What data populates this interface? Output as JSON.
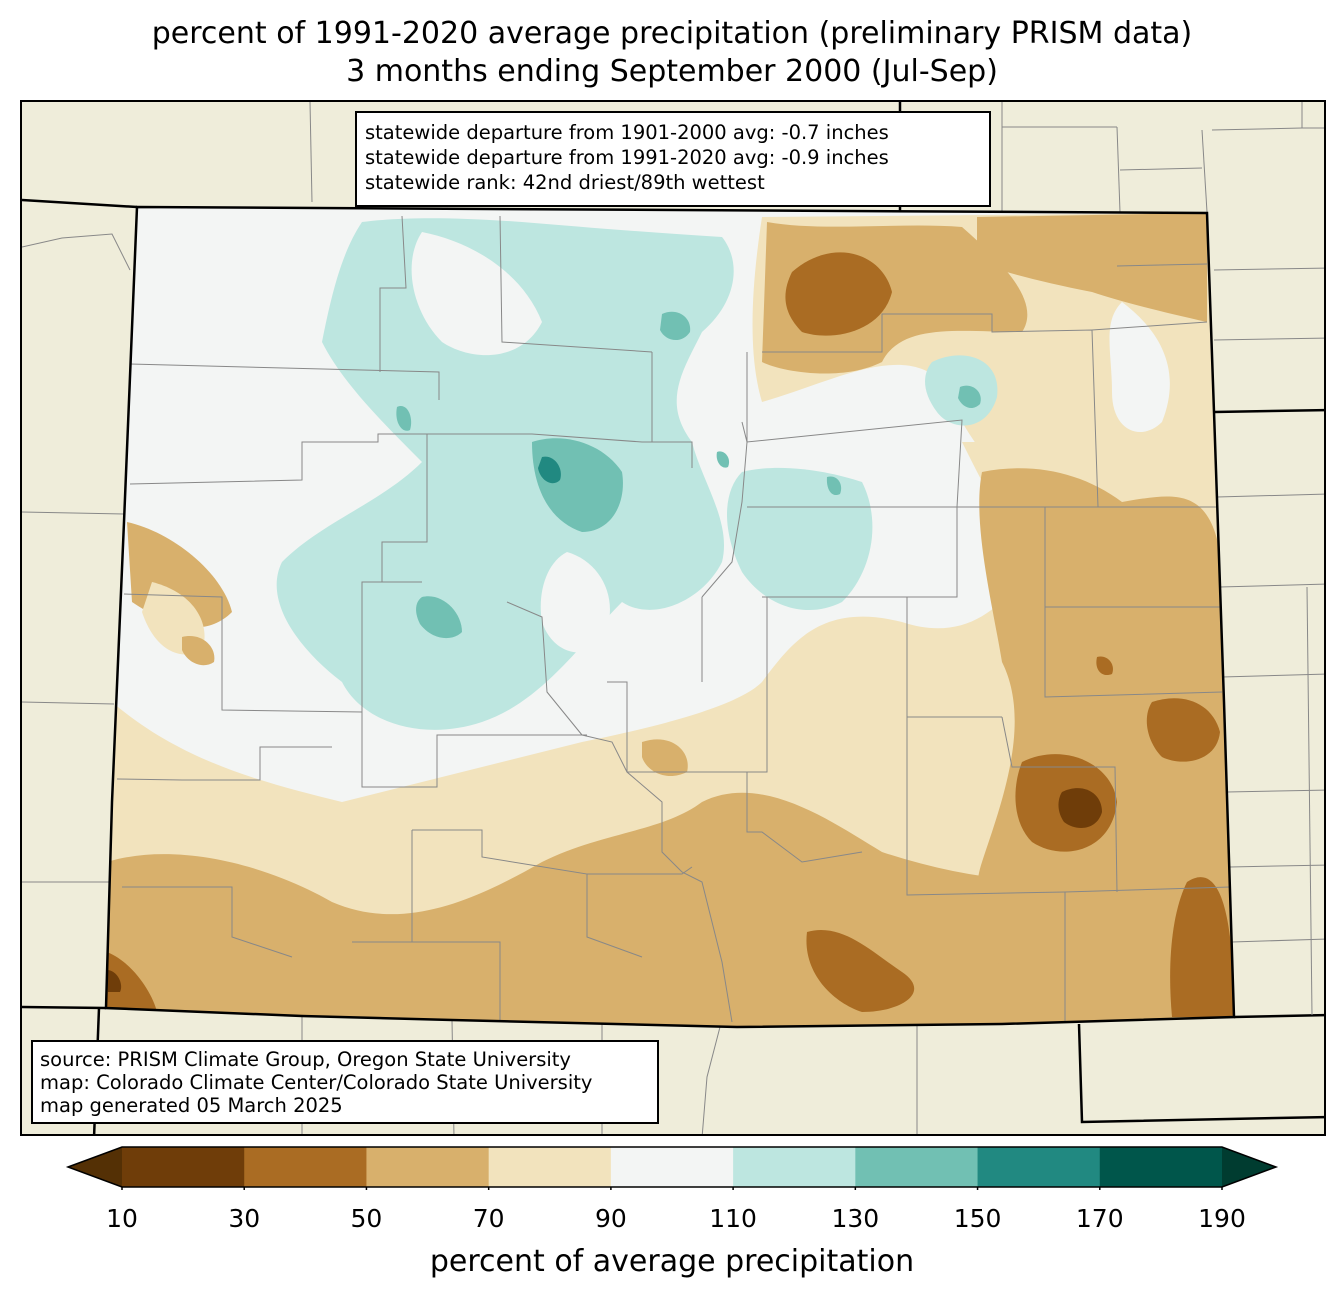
{
  "title": {
    "line1": "percent of 1991-2020 average precipitation (preliminary PRISM data)",
    "line2": "3 months ending September 2000 (Jul-Sep)"
  },
  "stats_box": {
    "line1": "statewide departure from 1901-2000 avg: -0.7 inches",
    "line2": "statewide departure from 1991-2020 avg: -0.9 inches",
    "line3": "statewide rank: 42nd driest/89th wettest"
  },
  "source_box": {
    "line1": "source: PRISM Climate Group, Oregon State University",
    "line2": "map: Colorado Climate Center/Colorado State University",
    "line3": "map generated 05 March 2025"
  },
  "colorbar": {
    "label": "percent of average precipitation",
    "ticks": [
      "10",
      "30",
      "50",
      "70",
      "90",
      "110",
      "130",
      "150",
      "170",
      "190"
    ],
    "bins": [
      {
        "range": "<10",
        "color": "#543005"
      },
      {
        "range": "10-30",
        "color": "#6f3d09"
      },
      {
        "range": "30-50",
        "color": "#aa6c23"
      },
      {
        "range": "50-70",
        "color": "#d8b06c"
      },
      {
        "range": "70-90",
        "color": "#f2e3bd"
      },
      {
        "range": "90-110",
        "color": "#f3f5f4"
      },
      {
        "range": "110-130",
        "color": "#bde6e0"
      },
      {
        "range": "130-150",
        "color": "#71c0b3"
      },
      {
        "range": "150-170",
        "color": "#218981"
      },
      {
        "range": "170-190",
        "color": "#00564b"
      },
      {
        "range": ">190",
        "color": "#003c30"
      }
    ]
  },
  "map": {
    "region": "Colorado",
    "background_color": "#efedda",
    "state_border_color": "#000000",
    "county_line_color": "#888888"
  }
}
